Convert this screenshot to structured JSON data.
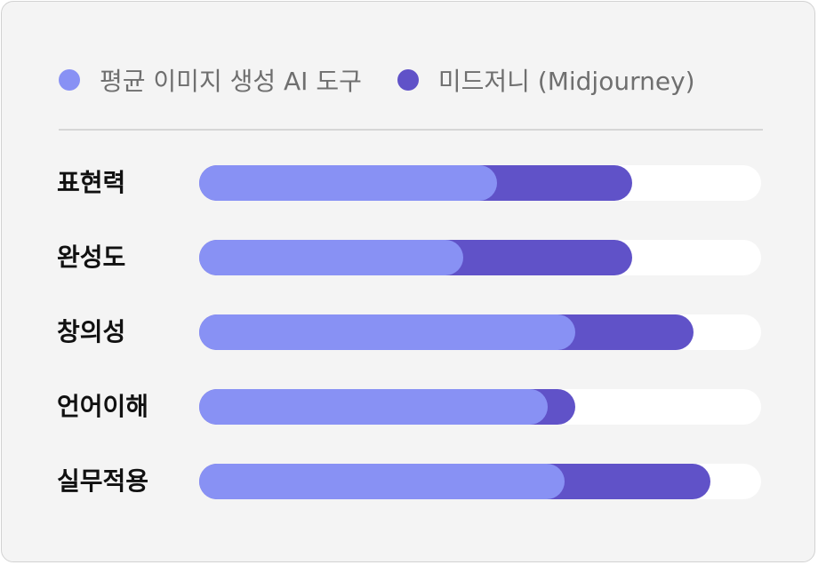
{
  "chart_data": {
    "type": "bar",
    "orientation": "horizontal",
    "stacked": false,
    "series": [
      {
        "name": "평균 이미지 생성 AI 도구",
        "color": "#8891f4",
        "values": [
          5.3,
          4.7,
          6.7,
          6.2,
          6.5
        ]
      },
      {
        "name": "미드저니 (Midjourney)",
        "color": "#6052c8",
        "values": [
          7.7,
          7.7,
          8.8,
          6.7,
          9.1
        ]
      }
    ],
    "categories": [
      "표현력",
      "완성도",
      "창의성",
      "언어이해",
      "실무적용"
    ],
    "xlim": [
      0,
      10
    ],
    "grid": false,
    "legend_position": "top-left"
  }
}
